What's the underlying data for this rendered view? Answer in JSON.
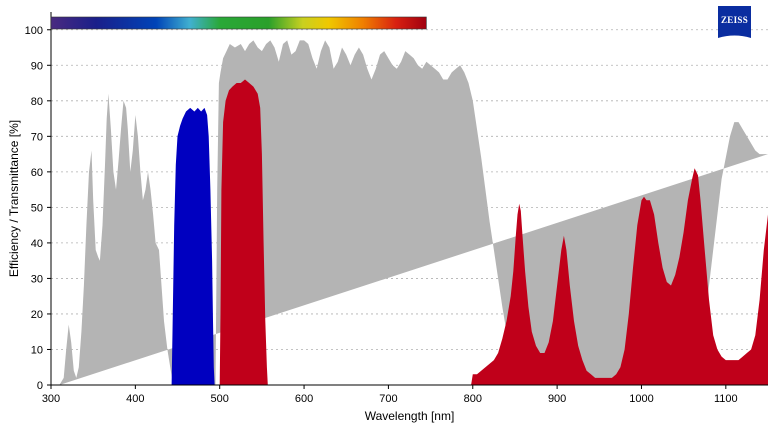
{
  "logo": {
    "text": "ZEISS",
    "color": "#0a2da0"
  },
  "chart_data": {
    "type": "area",
    "xlabel": "Wavelength [nm]",
    "ylabel": "Efficiency / Transmittance [%]",
    "xlim": [
      300,
      1150
    ],
    "ylim": [
      0,
      105
    ],
    "x_ticks": [
      300,
      400,
      500,
      600,
      700,
      800,
      900,
      1000,
      1100
    ],
    "y_ticks": [
      0,
      10,
      20,
      30,
      40,
      50,
      60,
      70,
      80,
      90,
      100
    ],
    "grid": "horizontal-dotted",
    "spectrum_bar": {
      "x_range": [
        300,
        745
      ]
    },
    "series": [
      {
        "color": "#b4b4b4",
        "points": [
          [
            310,
            0
          ],
          [
            315,
            2
          ],
          [
            318,
            10
          ],
          [
            321,
            17
          ],
          [
            324,
            12
          ],
          [
            327,
            4
          ],
          [
            330,
            2
          ],
          [
            333,
            5
          ],
          [
            336,
            15
          ],
          [
            339,
            28
          ],
          [
            342,
            45
          ],
          [
            345,
            60
          ],
          [
            348,
            66
          ],
          [
            350,
            52
          ],
          [
            353,
            38
          ],
          [
            356,
            36
          ],
          [
            358,
            35
          ],
          [
            361,
            45
          ],
          [
            364,
            62
          ],
          [
            366,
            75
          ],
          [
            368,
            82
          ],
          [
            371,
            72
          ],
          [
            374,
            60
          ],
          [
            377,
            55
          ],
          [
            380,
            63
          ],
          [
            383,
            72
          ],
          [
            386,
            80
          ],
          [
            389,
            78
          ],
          [
            391,
            72
          ],
          [
            394,
            60
          ],
          [
            397,
            66
          ],
          [
            400,
            76
          ],
          [
            403,
            70
          ],
          [
            406,
            60
          ],
          [
            409,
            52
          ],
          [
            412,
            55
          ],
          [
            415,
            60
          ],
          [
            418,
            55
          ],
          [
            421,
            48
          ],
          [
            424,
            40
          ],
          [
            428,
            38
          ],
          [
            431,
            28
          ],
          [
            434,
            18
          ],
          [
            438,
            10
          ],
          [
            442,
            4
          ],
          [
            445,
            0
          ],
          [
            495,
            0
          ],
          [
            497,
            55
          ],
          [
            499,
            85
          ],
          [
            501,
            88
          ],
          [
            504,
            92
          ],
          [
            508,
            94
          ],
          [
            512,
            96
          ],
          [
            518,
            95
          ],
          [
            525,
            96
          ],
          [
            530,
            94
          ],
          [
            535,
            96
          ],
          [
            540,
            97
          ],
          [
            545,
            95
          ],
          [
            550,
            94
          ],
          [
            555,
            96
          ],
          [
            560,
            97
          ],
          [
            565,
            95
          ],
          [
            570,
            91
          ],
          [
            575,
            96
          ],
          [
            580,
            97
          ],
          [
            585,
            93
          ],
          [
            590,
            94
          ],
          [
            595,
            97
          ],
          [
            600,
            97
          ],
          [
            605,
            96
          ],
          [
            610,
            92
          ],
          [
            615,
            89
          ],
          [
            620,
            94
          ],
          [
            625,
            97
          ],
          [
            630,
            95
          ],
          [
            635,
            89
          ],
          [
            640,
            91
          ],
          [
            645,
            95
          ],
          [
            650,
            93
          ],
          [
            655,
            90
          ],
          [
            660,
            93
          ],
          [
            665,
            95
          ],
          [
            670,
            93
          ],
          [
            675,
            89
          ],
          [
            680,
            86
          ],
          [
            685,
            89
          ],
          [
            690,
            93
          ],
          [
            695,
            94
          ],
          [
            700,
            92
          ],
          [
            705,
            90
          ],
          [
            710,
            89
          ],
          [
            715,
            91
          ],
          [
            720,
            94
          ],
          [
            725,
            93
          ],
          [
            730,
            92
          ],
          [
            735,
            90
          ],
          [
            740,
            89
          ],
          [
            745,
            91
          ],
          [
            750,
            90
          ],
          [
            755,
            89
          ],
          [
            760,
            88
          ],
          [
            765,
            86
          ],
          [
            770,
            86
          ],
          [
            775,
            88
          ],
          [
            780,
            89
          ],
          [
            785,
            90
          ],
          [
            790,
            88
          ],
          [
            795,
            85
          ],
          [
            800,
            80
          ],
          [
            805,
            72
          ],
          [
            810,
            64
          ],
          [
            815,
            55
          ],
          [
            820,
            46
          ],
          [
            825,
            38
          ],
          [
            830,
            30
          ],
          [
            835,
            22
          ],
          [
            840,
            15
          ],
          [
            845,
            10
          ],
          [
            850,
            6
          ],
          [
            855,
            3
          ],
          [
            860,
            1
          ],
          [
            865,
            0
          ],
          [
            1055,
            0
          ],
          [
            1060,
            2
          ],
          [
            1065,
            5
          ],
          [
            1070,
            10
          ],
          [
            1075,
            18
          ],
          [
            1080,
            28
          ],
          [
            1085,
            38
          ],
          [
            1090,
            48
          ],
          [
            1095,
            58
          ],
          [
            1100,
            64
          ],
          [
            1105,
            70
          ],
          [
            1110,
            74
          ],
          [
            1115,
            74
          ],
          [
            1120,
            72
          ],
          [
            1125,
            70
          ],
          [
            1130,
            68
          ],
          [
            1135,
            66
          ],
          [
            1140,
            65
          ],
          [
            1145,
            65
          ],
          [
            1150,
            65
          ]
        ]
      },
      {
        "color": "#0000c0",
        "points": [
          [
            443,
            0
          ],
          [
            444,
            15
          ],
          [
            446,
            45
          ],
          [
            448,
            62
          ],
          [
            450,
            70
          ],
          [
            453,
            73
          ],
          [
            456,
            75
          ],
          [
            460,
            77
          ],
          [
            465,
            78
          ],
          [
            470,
            77
          ],
          [
            474,
            78
          ],
          [
            478,
            77
          ],
          [
            482,
            78
          ],
          [
            485,
            76
          ],
          [
            487,
            70
          ],
          [
            489,
            55
          ],
          [
            491,
            35
          ],
          [
            492,
            18
          ],
          [
            493,
            5
          ],
          [
            494,
            0
          ]
        ]
      },
      {
        "color": "#c0001a",
        "points": [
          [
            500,
            0
          ],
          [
            501,
            20
          ],
          [
            502,
            55
          ],
          [
            504,
            74
          ],
          [
            507,
            80
          ],
          [
            511,
            83
          ],
          [
            515,
            84
          ],
          [
            520,
            85
          ],
          [
            525,
            85
          ],
          [
            530,
            86
          ],
          [
            535,
            85
          ],
          [
            540,
            84
          ],
          [
            545,
            82
          ],
          [
            548,
            78
          ],
          [
            550,
            65
          ],
          [
            552,
            40
          ],
          [
            554,
            18
          ],
          [
            556,
            5
          ],
          [
            557,
            0
          ],
          [
            798,
            0
          ],
          [
            800,
            3
          ],
          [
            805,
            3
          ],
          [
            810,
            4
          ],
          [
            815,
            5
          ],
          [
            820,
            6
          ],
          [
            825,
            7
          ],
          [
            830,
            9
          ],
          [
            835,
            13
          ],
          [
            840,
            18
          ],
          [
            845,
            25
          ],
          [
            848,
            32
          ],
          [
            851,
            42
          ],
          [
            853,
            48
          ],
          [
            855,
            51
          ],
          [
            857,
            49
          ],
          [
            859,
            42
          ],
          [
            862,
            32
          ],
          [
            866,
            22
          ],
          [
            870,
            15
          ],
          [
            875,
            11
          ],
          [
            880,
            9
          ],
          [
            885,
            9
          ],
          [
            890,
            12
          ],
          [
            895,
            18
          ],
          [
            900,
            28
          ],
          [
            905,
            38
          ],
          [
            908,
            42
          ],
          [
            911,
            38
          ],
          [
            915,
            28
          ],
          [
            920,
            18
          ],
          [
            925,
            11
          ],
          [
            930,
            7
          ],
          [
            935,
            4
          ],
          [
            940,
            3
          ],
          [
            945,
            2
          ],
          [
            950,
            2
          ],
          [
            955,
            2
          ],
          [
            960,
            2
          ],
          [
            965,
            2
          ],
          [
            970,
            3
          ],
          [
            975,
            5
          ],
          [
            980,
            10
          ],
          [
            985,
            20
          ],
          [
            990,
            33
          ],
          [
            995,
            45
          ],
          [
            1000,
            52
          ],
          [
            1003,
            53
          ],
          [
            1006,
            52
          ],
          [
            1010,
            52
          ],
          [
            1015,
            48
          ],
          [
            1020,
            40
          ],
          [
            1025,
            33
          ],
          [
            1030,
            29
          ],
          [
            1035,
            28
          ],
          [
            1040,
            31
          ],
          [
            1045,
            36
          ],
          [
            1050,
            43
          ],
          [
            1055,
            52
          ],
          [
            1060,
            58
          ],
          [
            1063,
            61
          ],
          [
            1067,
            59
          ],
          [
            1070,
            52
          ],
          [
            1075,
            38
          ],
          [
            1080,
            24
          ],
          [
            1085,
            14
          ],
          [
            1090,
            10
          ],
          [
            1095,
            8
          ],
          [
            1100,
            7
          ],
          [
            1105,
            7
          ],
          [
            1110,
            7
          ],
          [
            1115,
            7
          ],
          [
            1120,
            8
          ],
          [
            1125,
            9
          ],
          [
            1130,
            10
          ],
          [
            1135,
            14
          ],
          [
            1140,
            24
          ],
          [
            1145,
            38
          ],
          [
            1150,
            48
          ],
          [
            1150,
            0
          ]
        ]
      }
    ]
  }
}
